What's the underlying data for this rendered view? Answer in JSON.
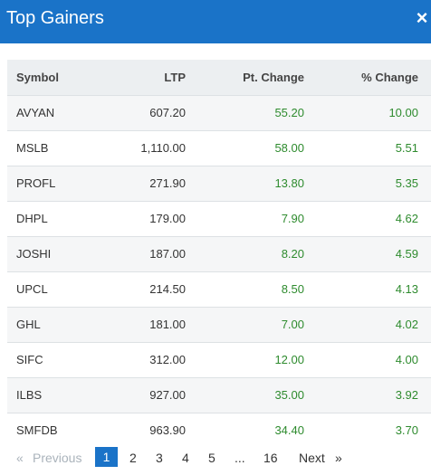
{
  "header": {
    "title": "Top Gainers",
    "close_glyph": "×",
    "close_icon": "close-icon"
  },
  "table": {
    "columns": [
      "Symbol",
      "LTP",
      "Pt. Change",
      "% Change"
    ],
    "rows": [
      [
        "AVYAN",
        "607.20",
        "55.20",
        "10.00"
      ],
      [
        "MSLB",
        "1,110.00",
        "58.00",
        "5.51"
      ],
      [
        "PROFL",
        "271.90",
        "13.80",
        "5.35"
      ],
      [
        "DHPL",
        "179.00",
        "7.90",
        "4.62"
      ],
      [
        "JOSHI",
        "187.00",
        "8.20",
        "4.59"
      ],
      [
        "UPCL",
        "214.50",
        "8.50",
        "4.13"
      ],
      [
        "GHL",
        "181.00",
        "7.00",
        "4.02"
      ],
      [
        "SIFC",
        "312.00",
        "12.00",
        "4.00"
      ],
      [
        "ILBS",
        "927.00",
        "35.00",
        "3.92"
      ],
      [
        "SMFDB",
        "963.90",
        "34.40",
        "3.70"
      ]
    ]
  },
  "pagination": {
    "prev_arrow": "«",
    "prev_label": "Previous",
    "pages": [
      "1",
      "2",
      "3",
      "4",
      "5"
    ],
    "ellipsis": "...",
    "last_page": "16",
    "next_label": "Next",
    "next_arrow": "»",
    "current_page": "1"
  },
  "colors": {
    "header_bg": "#1a73c8",
    "positive": "#2e8b2e",
    "active_page": "#1a73c8"
  }
}
